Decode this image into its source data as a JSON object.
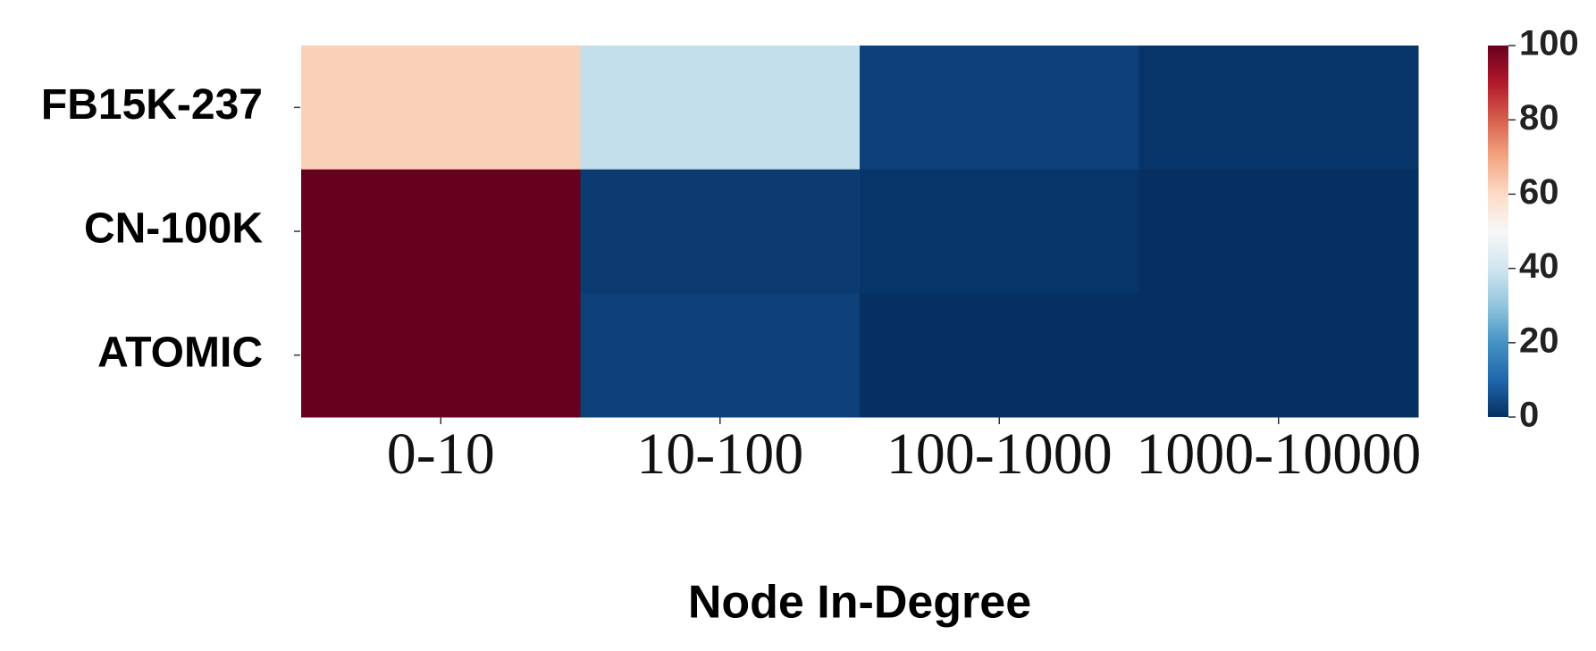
{
  "chart_data": {
    "type": "heatmap",
    "x_label": "Node In-Degree",
    "categories": [
      "0-10",
      "10-100",
      "100-1000",
      "1000-10000"
    ],
    "rows": [
      "FB15K-237",
      "CN-100K",
      "ATOMIC"
    ],
    "values": [
      [
        62,
        38,
        3,
        1
      ],
      [
        100,
        2,
        1,
        0
      ],
      [
        100,
        3,
        0,
        0
      ]
    ],
    "colormap": "RdBu_r",
    "clim": [
      0,
      100
    ],
    "cticks": [
      0,
      20,
      40,
      60,
      80,
      100
    ]
  }
}
